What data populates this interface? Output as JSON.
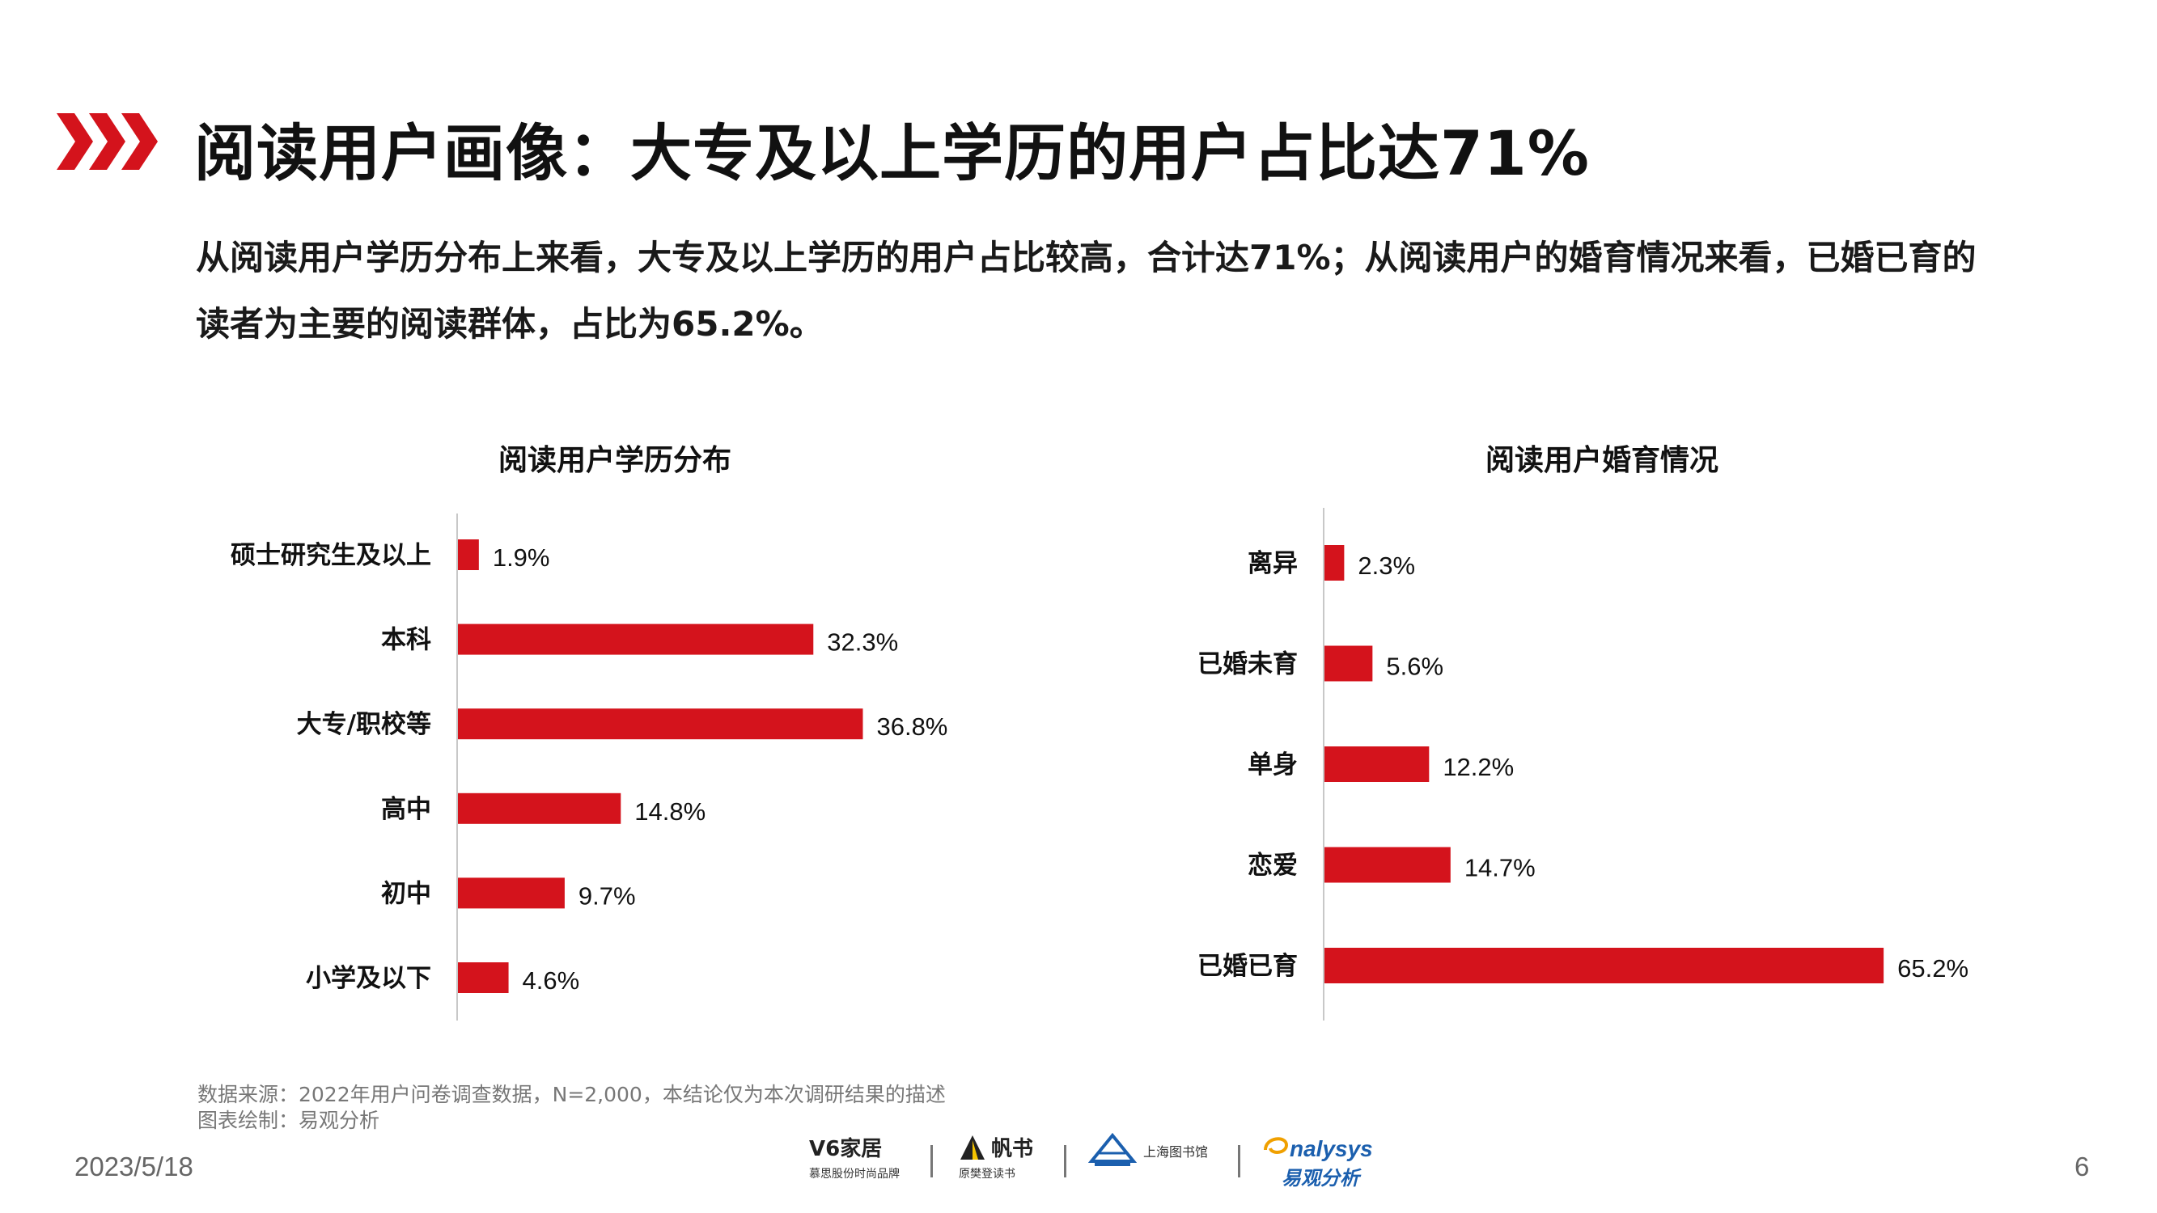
{
  "header": {
    "title": "阅读用户画像：大专及以上学历的用户占比达71%",
    "description": "从阅读用户学历分布上来看，大专及以上学历的用户占比较高，合计达71%；从阅读用户的婚育情况来看，已婚已育的读者为主要的阅读群体，占比为65.2%。"
  },
  "chart_data": [
    {
      "type": "bar",
      "orientation": "horizontal",
      "title": "阅读用户学历分布",
      "categories": [
        "硕士研究生及以上",
        "本科",
        "大专/职校等",
        "高中",
        "初中",
        "小学及以下"
      ],
      "values": [
        1.9,
        32.3,
        36.8,
        14.8,
        9.7,
        4.6
      ],
      "value_labels": [
        "1.9%",
        "32.3%",
        "36.8%",
        "14.8%",
        "9.7%",
        "4.6%"
      ],
      "unit": "%",
      "color": "#d4131c",
      "grid": false
    },
    {
      "type": "bar",
      "orientation": "horizontal",
      "title": "阅读用户婚育情况",
      "categories": [
        "离异",
        "已婚未育",
        "单身",
        "恋爱",
        "已婚已育"
      ],
      "values": [
        2.3,
        5.6,
        12.2,
        14.7,
        65.2
      ],
      "value_labels": [
        "2.3%",
        "5.6%",
        "12.2%",
        "14.7%",
        "65.2%"
      ],
      "unit": "%",
      "color": "#d4131c",
      "grid": false
    }
  ],
  "footer": {
    "source_line1": "数据来源：2022年用户问卷调查数据，N=2,000，本结论仅为本次调研结果的描述",
    "source_line2": "图表绘制：易观分析",
    "date": "2023/5/18",
    "page_number": "6",
    "logos": [
      {
        "name": "v6-logo",
        "main": "V6家居",
        "sub": "慕思股份时尚品牌"
      },
      {
        "name": "fanshu-logo",
        "main": "帆书",
        "sub": "原樊登读书"
      },
      {
        "name": "library-logo",
        "main": "上海图书馆",
        "sub": ""
      },
      {
        "name": "analysys-logo",
        "main": "nalysys",
        "sub": "易观分析"
      }
    ]
  },
  "colors": {
    "accent": "#d4131c",
    "analysys_blue": "#1b5fae"
  }
}
